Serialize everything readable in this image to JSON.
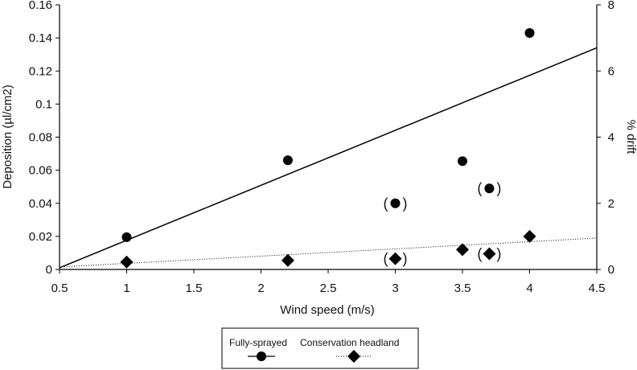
{
  "chart_data": {
    "type": "scatter",
    "title": "",
    "xlabel": "Wind speed (m/s)",
    "ylabel": "Deposition (µl/cm2)",
    "y2label": "% drift",
    "xlim": [
      0.5,
      4.5
    ],
    "ylim": [
      0,
      0.16
    ],
    "y2lim": [
      0,
      8
    ],
    "x_ticks": [
      "0.5",
      "1",
      "1.5",
      "2",
      "2.5",
      "3",
      "3.5",
      "4",
      "4.5"
    ],
    "y_ticks": [
      "0",
      "0.02",
      "0.04",
      "0.06",
      "0.08",
      "0.1",
      "0.12",
      "0.14",
      "0.16"
    ],
    "y2_ticks": [
      "0",
      "2",
      "4",
      "6",
      "8"
    ],
    "grid": false,
    "legend_position": "bottom-center",
    "series": [
      {
        "name": "Fully-sprayed",
        "marker": "circle",
        "line_style": "solid",
        "color": "#000000",
        "points": [
          {
            "x": 1.0,
            "y": 0.0195,
            "bracketed": false
          },
          {
            "x": 2.2,
            "y": 0.066,
            "bracketed": false
          },
          {
            "x": 3.0,
            "y": 0.04,
            "bracketed": true
          },
          {
            "x": 3.5,
            "y": 0.0655,
            "bracketed": false
          },
          {
            "x": 3.7,
            "y": 0.049,
            "bracketed": true
          },
          {
            "x": 4.0,
            "y": 0.143,
            "bracketed": false
          }
        ],
        "trendline": {
          "from": [
            0.5,
            0.001
          ],
          "to": [
            4.5,
            0.134
          ]
        }
      },
      {
        "name": "Conservation headland",
        "marker": "diamond",
        "line_style": "dotted",
        "color": "#000000",
        "points": [
          {
            "x": 1.0,
            "y": 0.0045,
            "bracketed": false
          },
          {
            "x": 2.2,
            "y": 0.0055,
            "bracketed": false
          },
          {
            "x": 3.0,
            "y": 0.0065,
            "bracketed": true
          },
          {
            "x": 3.5,
            "y": 0.012,
            "bracketed": false
          },
          {
            "x": 3.7,
            "y": 0.0095,
            "bracketed": true
          },
          {
            "x": 4.0,
            "y": 0.02,
            "bracketed": false
          }
        ],
        "trendline": {
          "from": [
            0.5,
            0.0015
          ],
          "to": [
            4.5,
            0.019
          ]
        }
      }
    ]
  }
}
